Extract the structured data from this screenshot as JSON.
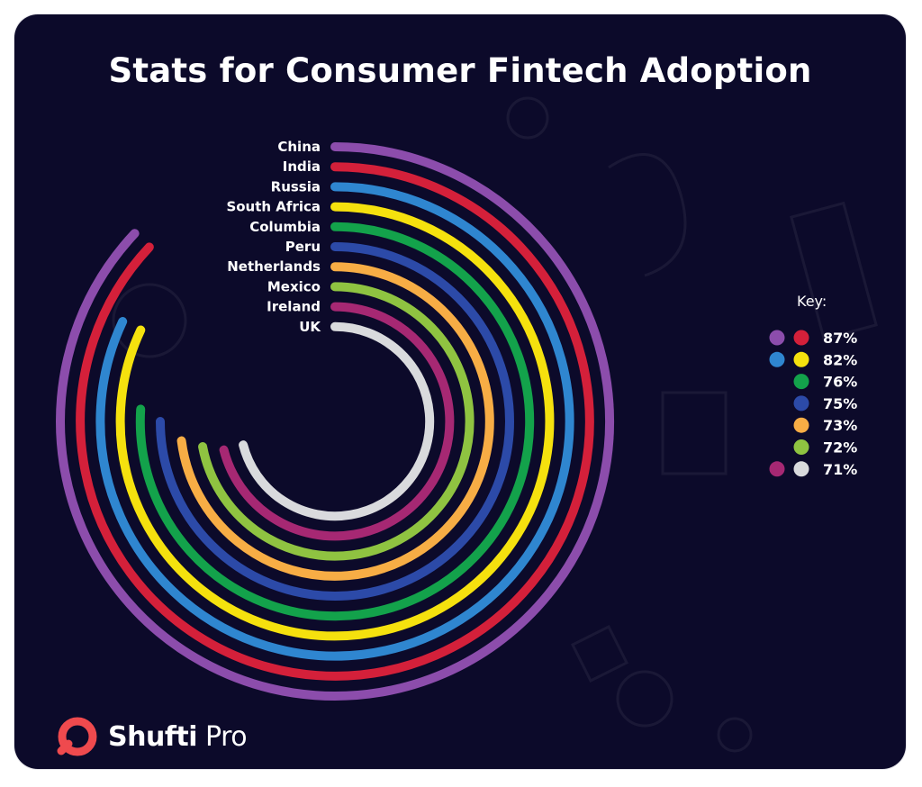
{
  "title": "Stats for Consumer Fintech Adoption",
  "chart_data": {
    "type": "radial-bar",
    "max_value": 100,
    "categories": [
      "China",
      "India",
      "Russia",
      "South Africa",
      "Columbia",
      "Peru",
      "Netherlands",
      "Mexico",
      "Ireland",
      "UK"
    ],
    "values": [
      87,
      87,
      82,
      82,
      76,
      75,
      73,
      72,
      71,
      71
    ],
    "colors": [
      "#8c4dac",
      "#d4203a",
      "#2f86d0",
      "#f5e10e",
      "#13a24b",
      "#2c4aa8",
      "#f7ad45",
      "#8fc341",
      "#a62873",
      "#d9dadd"
    ],
    "legend": {
      "title": "Key:",
      "entries": [
        {
          "label": "87%",
          "colors": [
            "#8c4dac",
            "#d4203a"
          ]
        },
        {
          "label": "82%",
          "colors": [
            "#2f86d0",
            "#f5e10e"
          ]
        },
        {
          "label": "76%",
          "colors": [
            "#13a24b"
          ]
        },
        {
          "label": "75%",
          "colors": [
            "#2c4aa8"
          ]
        },
        {
          "label": "73%",
          "colors": [
            "#f7ad45"
          ]
        },
        {
          "label": "72%",
          "colors": [
            "#8fc341"
          ]
        },
        {
          "label": "71%",
          "colors": [
            "#a62873",
            "#d9dadd"
          ]
        }
      ]
    }
  },
  "brand": {
    "name_bold": "Shufti",
    "name_light": "Pro",
    "accent": "#ef4a4e"
  }
}
